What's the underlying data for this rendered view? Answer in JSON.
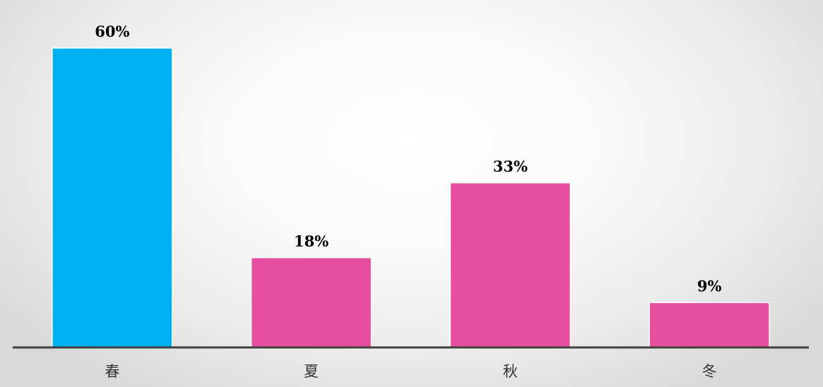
{
  "chart_data": {
    "type": "bar",
    "title": "",
    "xlabel": "",
    "ylabel": "",
    "ylim": [
      0,
      60
    ],
    "grid": false,
    "legend": "none",
    "categories": [
      "春",
      "夏",
      "秋",
      "冬"
    ],
    "values": [
      60,
      18,
      33,
      9
    ],
    "value_labels": [
      "60%",
      "18%",
      "33%",
      "9%"
    ],
    "colors": [
      "#00b0f0",
      "#e64f9f",
      "#e64f9f",
      "#e64f9f"
    ],
    "axis_color": "#404040"
  }
}
